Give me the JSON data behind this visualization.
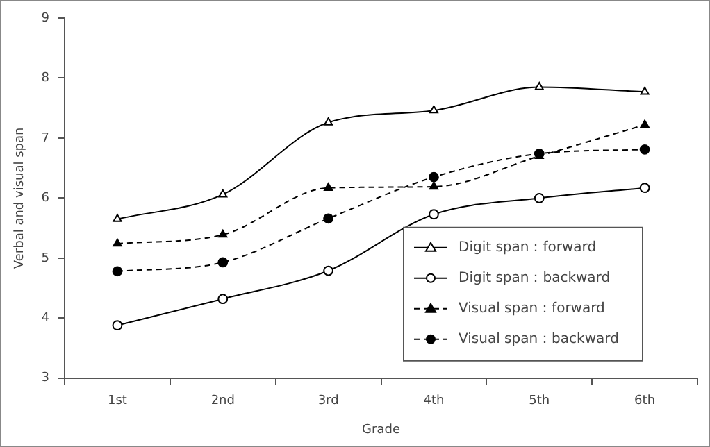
{
  "chart_data": {
    "type": "line",
    "xlabel": "Grade",
    "ylabel": "Verbal and visual span",
    "categories": [
      "1st",
      "2nd",
      "3rd",
      "4th",
      "5th",
      "6th"
    ],
    "ylim": [
      3,
      9
    ],
    "yticks": [
      3,
      4,
      5,
      6,
      7,
      8,
      9
    ],
    "grid": false,
    "legend": "bottom right",
    "series": [
      {
        "name": "Digit span：forward",
        "color": "#000000",
        "marker": "triangle",
        "line_style": "solid",
        "values": [
          5.65,
          6.06,
          7.26,
          7.46,
          7.85,
          7.77
        ]
      },
      {
        "name": "Digit span：backward",
        "color": "#000000",
        "marker": "circle",
        "line_style": "solid",
        "values": [
          3.88,
          4.32,
          4.79,
          5.73,
          6.0,
          6.17
        ]
      },
      {
        "name": "Visual span：forward",
        "color": "#000000",
        "marker": "triangle",
        "line_style": "dashed",
        "values": [
          5.24,
          5.39,
          6.17,
          6.19,
          6.7,
          7.22
        ]
      },
      {
        "name": "Visual span：backward",
        "color": "#000000",
        "marker": "circle",
        "line_style": "dashed",
        "values": [
          4.78,
          4.93,
          5.66,
          6.35,
          6.74,
          6.81
        ]
      }
    ]
  }
}
